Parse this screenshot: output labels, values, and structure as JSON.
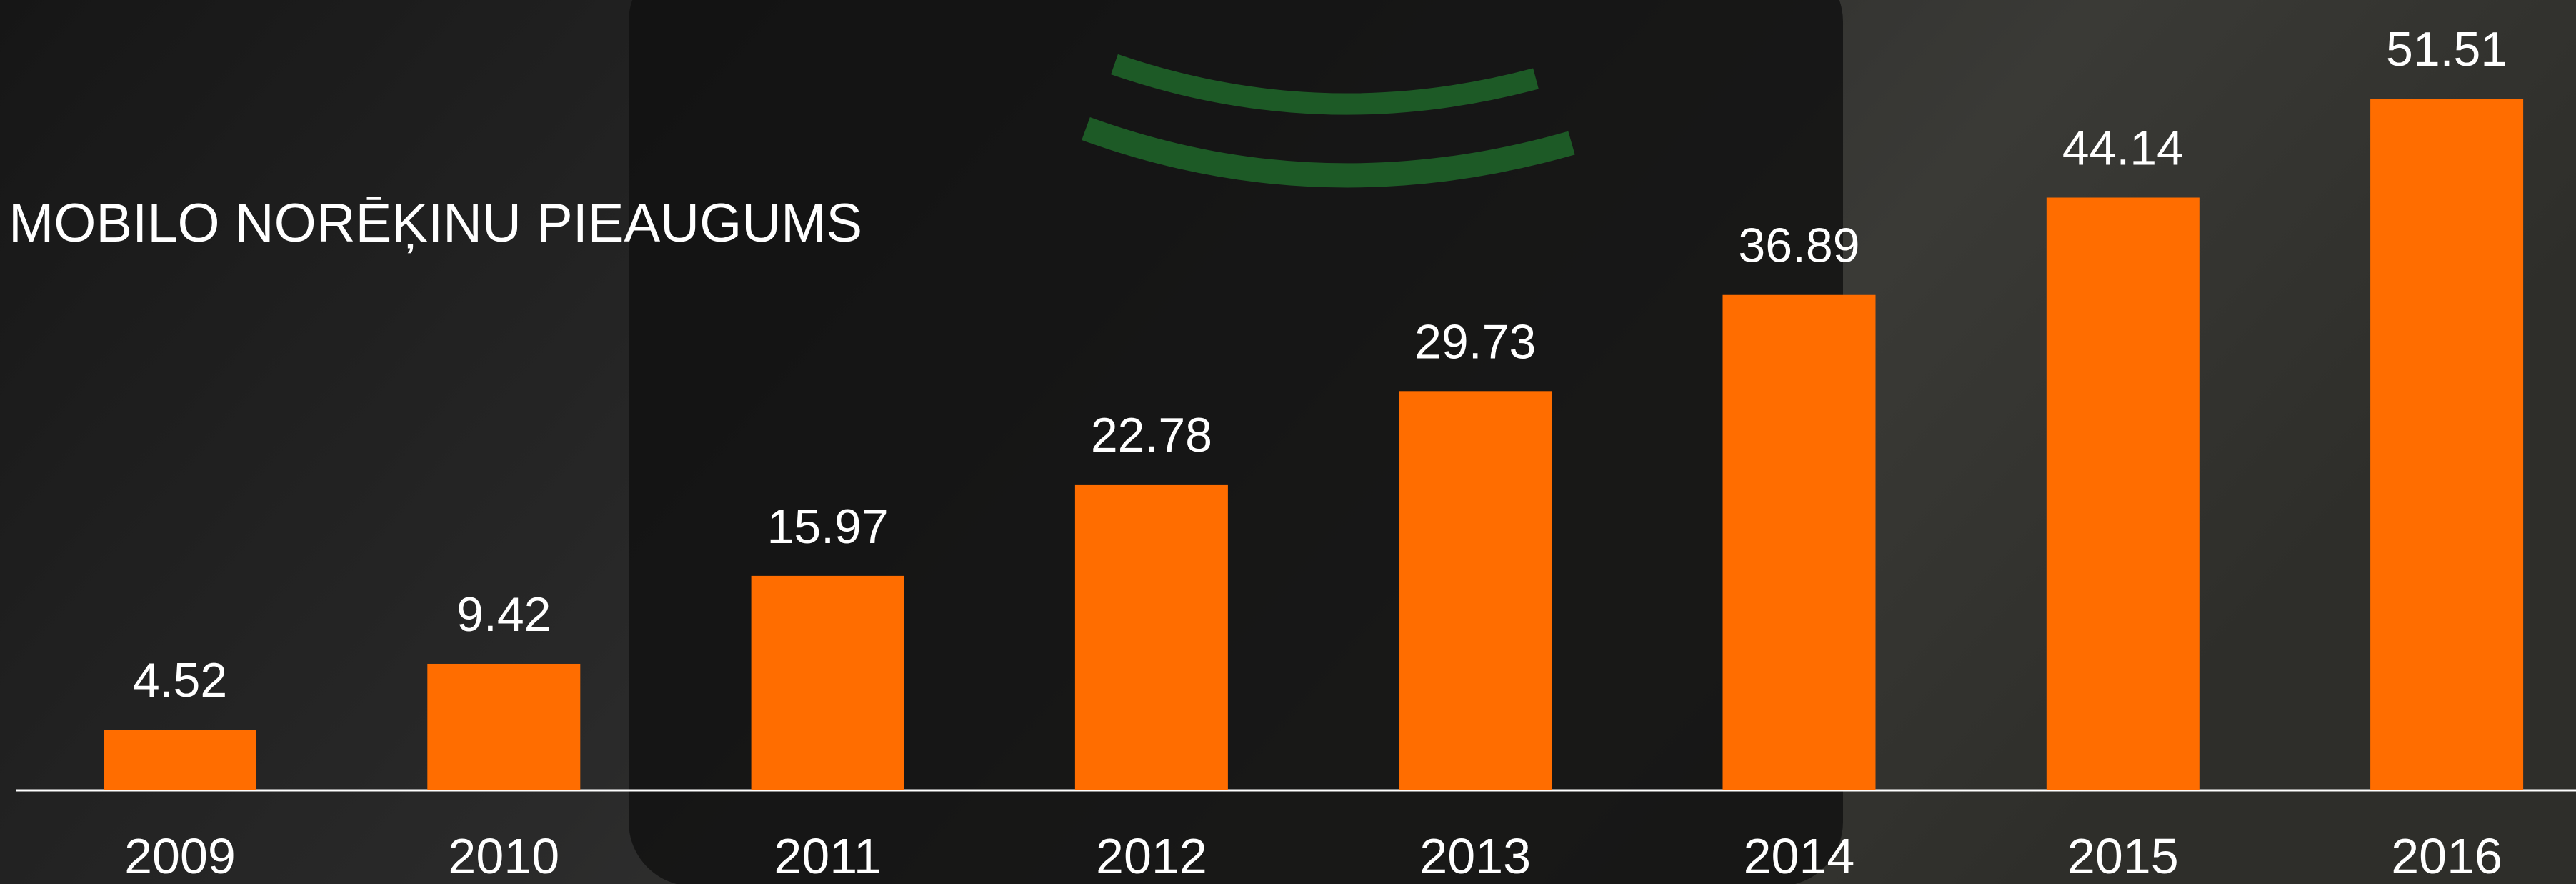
{
  "chart_data": {
    "type": "bar",
    "title": "MOBILO NORĒĶINU PIEAUGUMS",
    "categories": [
      "2009",
      "2010",
      "2011",
      "2012",
      "2013",
      "2014",
      "2015",
      "2016"
    ],
    "values": [
      4.52,
      9.42,
      15.97,
      22.78,
      29.73,
      36.89,
      44.14,
      51.51
    ],
    "color": "#ff6d00"
  }
}
